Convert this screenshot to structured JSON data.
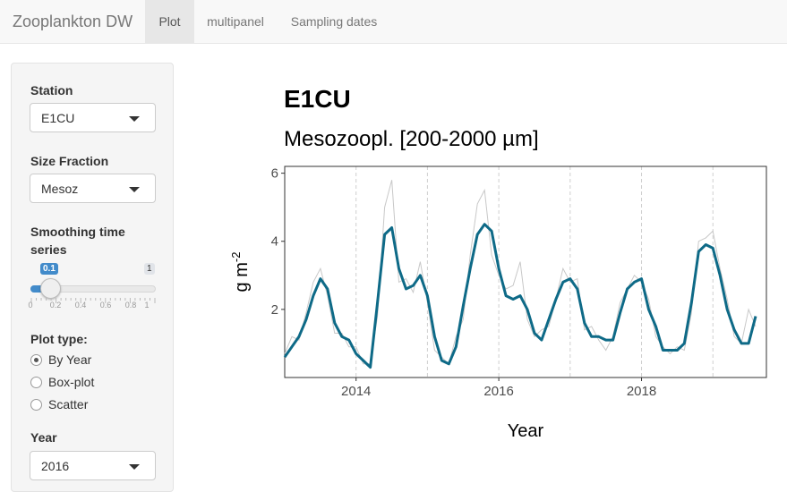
{
  "navbar": {
    "brand": "Zooplankton DW",
    "tabs": [
      {
        "label": "Plot",
        "active": true
      },
      {
        "label": "multipanel",
        "active": false
      },
      {
        "label": "Sampling dates",
        "active": false
      }
    ]
  },
  "sidebar": {
    "station": {
      "label": "Station",
      "value": "E1CU"
    },
    "size_fraction": {
      "label": "Size Fraction",
      "value": "Mesoz"
    },
    "smoothing": {
      "label_line1": "Smoothing time",
      "label_line2": "series",
      "value": 0.1,
      "value_text": "0.1",
      "max_text": "1",
      "tick_labels": [
        "0",
        "0.2",
        "0.4",
        "0.6",
        "0.8",
        "1"
      ]
    },
    "plot_type": {
      "label": "Plot type:",
      "options": [
        {
          "label": "By Year",
          "checked": true
        },
        {
          "label": "Box-plot",
          "checked": false
        },
        {
          "label": "Scatter",
          "checked": false
        }
      ]
    },
    "year": {
      "label": "Year",
      "value": "2016"
    }
  },
  "main": {
    "title": "E1CU",
    "subtitle": "Mesozoopl. [200-2000 µm]"
  },
  "colors": {
    "accent": "#428bca",
    "smooth_line": "#0e6a87",
    "raw_line": "#c8c8c8"
  },
  "chart_data": {
    "type": "line",
    "xlabel": "Year",
    "ylabel": "g m",
    "ylabel_superscript": "-2",
    "xlim": [
      2013.0,
      2019.75
    ],
    "ylim": [
      0,
      6.2
    ],
    "x_ticks": [
      2014,
      2016,
      2018
    ],
    "y_ticks": [
      2,
      4,
      6
    ],
    "grid": "vertical dashed lines at year boundaries",
    "series": [
      {
        "role": "smoothed",
        "x": [
          2013.0,
          2013.1,
          2013.2,
          2013.3,
          2013.4,
          2013.5,
          2013.6,
          2013.7,
          2013.8,
          2013.9,
          2014.0,
          2014.1,
          2014.2,
          2014.3,
          2014.4,
          2014.5,
          2014.6,
          2014.7,
          2014.8,
          2014.9,
          2015.0,
          2015.1,
          2015.2,
          2015.3,
          2015.4,
          2015.5,
          2015.6,
          2015.7,
          2015.8,
          2015.9,
          2016.0,
          2016.1,
          2016.2,
          2016.3,
          2016.4,
          2016.5,
          2016.6,
          2016.7,
          2016.8,
          2016.9,
          2017.0,
          2017.1,
          2017.2,
          2017.3,
          2017.4,
          2017.5,
          2017.6,
          2017.7,
          2017.8,
          2017.9,
          2018.0,
          2018.1,
          2018.2,
          2018.3,
          2018.4,
          2018.5,
          2018.6,
          2018.7,
          2018.8,
          2018.9,
          2019.0,
          2019.1,
          2019.2,
          2019.3,
          2019.4,
          2019.5,
          2019.6
        ],
        "y": [
          0.6,
          0.9,
          1.2,
          1.7,
          2.4,
          2.9,
          2.6,
          1.6,
          1.2,
          1.1,
          0.7,
          0.5,
          0.3,
          2.2,
          4.2,
          4.4,
          3.2,
          2.6,
          2.7,
          3.0,
          2.4,
          1.2,
          0.5,
          0.4,
          0.9,
          2.1,
          3.2,
          4.2,
          4.5,
          4.3,
          3.2,
          2.4,
          2.3,
          2.4,
          2.0,
          1.3,
          1.1,
          1.7,
          2.3,
          2.8,
          2.9,
          2.6,
          1.6,
          1.2,
          1.2,
          1.1,
          1.1,
          1.9,
          2.6,
          2.8,
          2.9,
          2.0,
          1.5,
          0.8,
          0.8,
          0.8,
          1.0,
          2.2,
          3.7,
          3.9,
          3.8,
          3.0,
          2.0,
          1.4,
          1.0,
          1.0,
          1.8
        ],
        "note": "x dates decimal years; final points spaced to 2019.5"
      }
    ]
  }
}
